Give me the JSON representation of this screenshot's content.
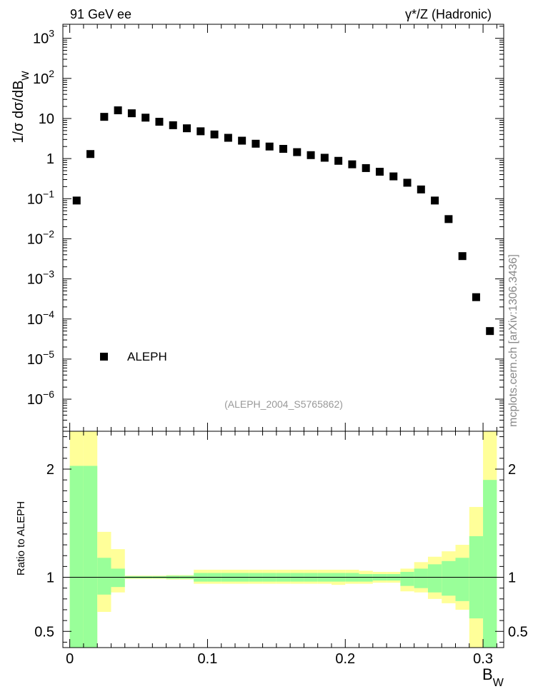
{
  "header": {
    "left_label": "91 GeV ee",
    "right_label": "γ*/Z (Hadronic)"
  },
  "watermark": "mcplots.cern.ch [arXiv:1306.3436]",
  "analysis_tag": "(ALEPH_2004_S5765862)",
  "colors": {
    "data": "#000000",
    "band_outer": "#ffff99",
    "band_inner": "#99ff99",
    "tag_text": "#999999",
    "watermark_text": "#888888"
  },
  "chart_data": [
    {
      "type": "scatter",
      "log_y": true,
      "ylabel": "1/σ  dσ/dB",
      "ylabel_sub": "W",
      "xlim": [
        -0.005,
        0.315
      ],
      "ylim_log10": [
        -6.8,
        3.35
      ],
      "y_ticks": [
        {
          "base": "10",
          "exp": "3",
          "log": 3
        },
        {
          "base": "10",
          "exp": "2",
          "log": 2
        },
        {
          "text": "10",
          "log": 1
        },
        {
          "text": "1",
          "log": 0
        },
        {
          "base": "10",
          "exp": "−1",
          "log": -1
        },
        {
          "base": "10",
          "exp": "−2",
          "log": -2
        },
        {
          "base": "10",
          "exp": "−3",
          "log": -3
        },
        {
          "base": "10",
          "exp": "−4",
          "log": -4
        },
        {
          "base": "10",
          "exp": "−5",
          "log": -5
        },
        {
          "base": "10",
          "exp": "−6",
          "log": -6
        }
      ],
      "legend": {
        "label": "ALEPH",
        "placement": "bottom-left"
      },
      "series": [
        {
          "name": "ALEPH",
          "x": [
            0.005,
            0.015,
            0.025,
            0.035,
            0.045,
            0.055,
            0.065,
            0.075,
            0.085,
            0.095,
            0.105,
            0.115,
            0.125,
            0.135,
            0.145,
            0.155,
            0.165,
            0.175,
            0.185,
            0.195,
            0.205,
            0.215,
            0.225,
            0.235,
            0.245,
            0.255,
            0.265,
            0.275,
            0.285,
            0.295,
            0.305
          ],
          "y": [
            0.09,
            1.3,
            11,
            16,
            13.5,
            10.5,
            8.3,
            6.8,
            5.7,
            4.8,
            4.0,
            3.3,
            2.8,
            2.35,
            2.0,
            1.75,
            1.45,
            1.22,
            1.05,
            0.88,
            0.72,
            0.58,
            0.47,
            0.36,
            0.25,
            0.17,
            0.09,
            0.031,
            0.0037,
            0.00035,
            5e-05
          ]
        }
      ]
    },
    {
      "type": "area",
      "ylabel": "Ratio to ALEPH",
      "xlabel": "B",
      "xlabel_sub": "W",
      "xlim": [
        -0.005,
        0.315
      ],
      "ylim": [
        0.35,
        2.35
      ],
      "x_ticks": [
        "0",
        "0.1",
        "0.2",
        "0.3"
      ],
      "x_tick_values": [
        0,
        0.1,
        0.2,
        0.3
      ],
      "y_ticks": [
        "0.5",
        "1",
        "2"
      ],
      "y_tick_values": [
        0.5,
        1,
        2
      ],
      "reference_line": 1,
      "bins": [
        0.0,
        0.01,
        0.02,
        0.03,
        0.04,
        0.05,
        0.06,
        0.07,
        0.08,
        0.09,
        0.1,
        0.11,
        0.12,
        0.13,
        0.14,
        0.15,
        0.16,
        0.17,
        0.18,
        0.19,
        0.2,
        0.21,
        0.22,
        0.23,
        0.24,
        0.25,
        0.26,
        0.27,
        0.28,
        0.29,
        0.3,
        0.31
      ],
      "band_outer_lo": [
        0.3,
        0.3,
        0.68,
        0.86,
        0.985,
        0.985,
        0.985,
        0.98,
        0.98,
        0.94,
        0.94,
        0.94,
        0.94,
        0.94,
        0.94,
        0.94,
        0.94,
        0.94,
        0.94,
        0.93,
        0.94,
        0.94,
        0.95,
        0.95,
        0.87,
        0.86,
        0.8,
        0.76,
        0.7,
        0.3,
        0.3
      ],
      "band_outer_hi": [
        2.35,
        2.35,
        1.42,
        1.26,
        1.015,
        1.015,
        1.015,
        1.02,
        1.02,
        1.07,
        1.07,
        1.07,
        1.07,
        1.07,
        1.07,
        1.07,
        1.07,
        1.07,
        1.07,
        1.07,
        1.07,
        1.06,
        1.05,
        1.05,
        1.08,
        1.14,
        1.19,
        1.24,
        1.3,
        1.65,
        2.35
      ],
      "band_inner_lo": [
        0.3,
        0.3,
        0.84,
        0.91,
        0.99,
        0.99,
        0.99,
        0.985,
        0.985,
        0.96,
        0.96,
        0.96,
        0.96,
        0.96,
        0.96,
        0.96,
        0.96,
        0.96,
        0.96,
        0.96,
        0.96,
        0.96,
        0.97,
        0.97,
        0.92,
        0.9,
        0.86,
        0.83,
        0.78,
        0.62,
        0.3
      ],
      "band_inner_hi": [
        2.03,
        2.03,
        1.18,
        1.08,
        1.01,
        1.01,
        1.01,
        1.015,
        1.015,
        1.04,
        1.04,
        1.04,
        1.04,
        1.04,
        1.04,
        1.04,
        1.04,
        1.04,
        1.04,
        1.04,
        1.04,
        1.03,
        1.03,
        1.03,
        1.05,
        1.08,
        1.12,
        1.15,
        1.18,
        1.38,
        1.9
      ]
    }
  ]
}
